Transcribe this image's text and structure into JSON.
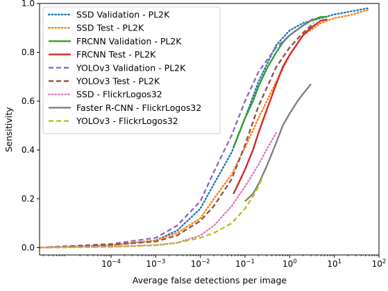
{
  "chart_data": {
    "type": "line",
    "title": "",
    "xlabel": "Average false detections per image",
    "ylabel": "Sensitivity",
    "xscale": "log",
    "xlim": [
      2.5e-06,
      100
    ],
    "ylim": [
      -0.03,
      1.0
    ],
    "grid": false,
    "legend_position": "top-left",
    "x_ticks": [
      {
        "value": 0.0001,
        "base": "10",
        "exp": "−4"
      },
      {
        "value": 0.001,
        "base": "10",
        "exp": "−3"
      },
      {
        "value": 0.01,
        "base": "10",
        "exp": "−2"
      },
      {
        "value": 0.1,
        "base": "10",
        "exp": "−1"
      },
      {
        "value": 1,
        "base": "10",
        "exp": "0"
      },
      {
        "value": 10,
        "base": "10",
        "exp": "1"
      },
      {
        "value": 100,
        "base": "10",
        "exp": "2"
      }
    ],
    "y_ticks": [
      {
        "value": 0.0,
        "label": "0.0"
      },
      {
        "value": 0.2,
        "label": "0.2"
      },
      {
        "value": 0.4,
        "label": "0.4"
      },
      {
        "value": 0.6,
        "label": "0.6"
      },
      {
        "value": 0.8,
        "label": "0.8"
      },
      {
        "value": 1.0,
        "label": "1.0"
      }
    ],
    "series": [
      {
        "name": "SSD Validation - PL2K",
        "color": "#1f77b4",
        "style": "dotted",
        "x": [
          2.5e-06,
          0.0001,
          0.001,
          0.003,
          0.01,
          0.02,
          0.05,
          0.1,
          0.2,
          0.5,
          1,
          2,
          5,
          10,
          20,
          55
        ],
        "y": [
          0.0,
          0.01,
          0.03,
          0.07,
          0.16,
          0.26,
          0.39,
          0.53,
          0.68,
          0.83,
          0.89,
          0.92,
          0.94,
          0.955,
          0.965,
          0.98
        ]
      },
      {
        "name": "SSD Test - PL2K",
        "color": "#ff7f0e",
        "style": "dotted",
        "x": [
          2.5e-06,
          0.0001,
          0.001,
          0.003,
          0.01,
          0.02,
          0.05,
          0.1,
          0.2,
          0.5,
          1,
          2,
          5,
          10,
          20,
          60
        ],
        "y": [
          0.0,
          0.01,
          0.03,
          0.06,
          0.12,
          0.2,
          0.3,
          0.41,
          0.53,
          0.68,
          0.79,
          0.87,
          0.92,
          0.94,
          0.95,
          0.975
        ]
      },
      {
        "name": "FRCNN Validation - PL2K",
        "color": "#2ca02c",
        "style": "solid",
        "x": [
          0.055,
          0.07,
          0.1,
          0.15,
          0.2,
          0.3,
          0.5,
          0.7,
          1,
          2,
          3,
          5,
          7
        ],
        "y": [
          0.41,
          0.46,
          0.53,
          0.6,
          0.66,
          0.73,
          0.8,
          0.84,
          0.87,
          0.91,
          0.93,
          0.945,
          0.945
        ]
      },
      {
        "name": "FRCNN Test - PL2K",
        "color": "#d62728",
        "style": "solid",
        "x": [
          0.055,
          0.07,
          0.1,
          0.15,
          0.2,
          0.3,
          0.5,
          0.7,
          1,
          2,
          3,
          5,
          7
        ],
        "y": [
          0.22,
          0.26,
          0.32,
          0.4,
          0.47,
          0.56,
          0.67,
          0.74,
          0.79,
          0.87,
          0.9,
          0.93,
          0.935
        ]
      },
      {
        "name": "YOLOv3 Validation - PL2K",
        "color": "#9467bd",
        "style": "dashed",
        "x": [
          2.5e-06,
          0.0001,
          0.001,
          0.003,
          0.01,
          0.02,
          0.05,
          0.1,
          0.2,
          0.5,
          1,
          2,
          3.5
        ],
        "y": [
          0.0,
          0.015,
          0.04,
          0.09,
          0.19,
          0.31,
          0.46,
          0.6,
          0.72,
          0.82,
          0.87,
          0.91,
          0.94
        ]
      },
      {
        "name": "YOLOv3 Test - PL2K",
        "color": "#8c564b",
        "style": "dashed",
        "x": [
          2.5e-06,
          0.0001,
          0.001,
          0.003,
          0.01,
          0.02,
          0.05,
          0.1,
          0.2,
          0.5,
          1,
          2,
          3.5
        ],
        "y": [
          0.0,
          0.012,
          0.025,
          0.05,
          0.11,
          0.17,
          0.28,
          0.42,
          0.58,
          0.74,
          0.82,
          0.88,
          0.92
        ]
      },
      {
        "name": "SSD - FlickrLogos32",
        "color": "#e377c2",
        "style": "dotted",
        "x": [
          2.5e-06,
          0.0001,
          0.001,
          0.003,
          0.01,
          0.02,
          0.05,
          0.1,
          0.2,
          0.3,
          0.5
        ],
        "y": [
          0.0,
          0.005,
          0.01,
          0.02,
          0.05,
          0.09,
          0.17,
          0.25,
          0.34,
          0.4,
          0.47
        ]
      },
      {
        "name": "Faster R-CNN - FlickrLogos32",
        "color": "#7f7f7f",
        "style": "solid",
        "x": [
          0.1,
          0.15,
          0.2,
          0.3,
          0.5,
          0.7,
          1,
          1.5,
          2,
          3
        ],
        "y": [
          0.19,
          0.22,
          0.26,
          0.33,
          0.43,
          0.5,
          0.55,
          0.6,
          0.63,
          0.67
        ]
      },
      {
        "name": "YOLOv3 - FlickrLogos32",
        "color": "#bcbd22",
        "style": "dashed",
        "x": [
          2.5e-06,
          0.0001,
          0.001,
          0.003,
          0.01,
          0.02,
          0.05,
          0.1,
          0.15,
          0.2,
          0.25
        ],
        "y": [
          0.0,
          0.003,
          0.01,
          0.02,
          0.04,
          0.06,
          0.1,
          0.16,
          0.21,
          0.25,
          0.29
        ]
      }
    ]
  }
}
